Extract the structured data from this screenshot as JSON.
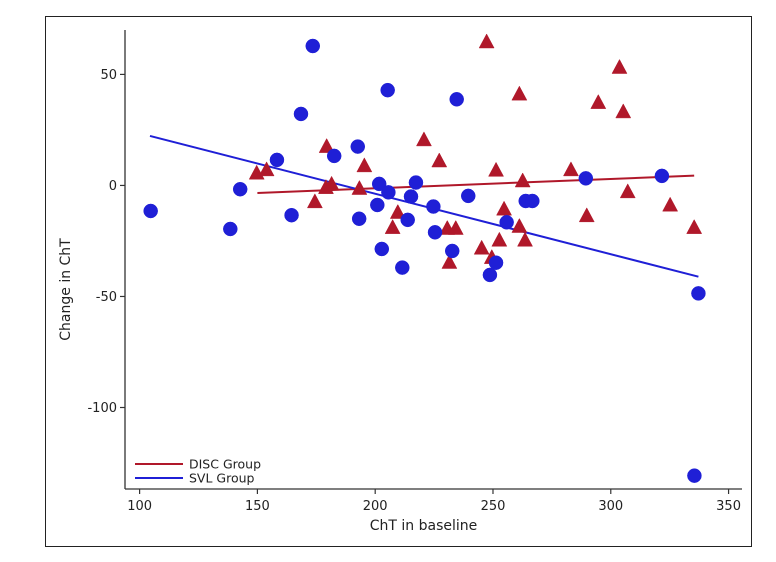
{
  "chart_data": {
    "type": "scatter",
    "title": "",
    "xlabel": "ChT in baseline",
    "ylabel": "Change in ChT",
    "xlim": [
      93.8,
      355.7
    ],
    "ylim": [
      -136.7,
      70
    ],
    "xticks": [
      100,
      150,
      200,
      250,
      300,
      350
    ],
    "yticks": [
      50,
      0,
      -50,
      -100
    ],
    "xtick_labels": [
      "100",
      "150",
      "200",
      "250",
      "300",
      "350"
    ],
    "ytick_labels": [
      "50",
      "0",
      "-50",
      "-100"
    ],
    "grid": false,
    "legend_position": "bottom-left",
    "series": [
      {
        "name": "DISC Group",
        "marker": "triangle",
        "color": "#b0182a",
        "points": [
          [
            149.7,
            5.2
          ],
          [
            153.9,
            6.7
          ],
          [
            174.4,
            -7.7
          ],
          [
            179.4,
            17.2
          ],
          [
            179.1,
            -1.3
          ],
          [
            181.5,
            0.2
          ],
          [
            193.3,
            -1.7
          ],
          [
            195.4,
            8.5
          ],
          [
            207.4,
            -19.3
          ],
          [
            209.6,
            -12.5
          ],
          [
            220.7,
            20.2
          ],
          [
            227.2,
            10.7
          ],
          [
            230.6,
            -19.7
          ],
          [
            234.2,
            -19.7
          ],
          [
            231.5,
            -35
          ],
          [
            245.2,
            -28.6
          ],
          [
            247.3,
            64.3
          ],
          [
            249.5,
            -32.8
          ],
          [
            251.3,
            6.5
          ],
          [
            252.7,
            -25
          ],
          [
            254.7,
            -11
          ],
          [
            261.2,
            40.8
          ],
          [
            261.2,
            -18.8
          ],
          [
            262.6,
            1.7
          ],
          [
            263.6,
            -25
          ],
          [
            283.1,
            6.7
          ],
          [
            289.8,
            -14
          ],
          [
            294.7,
            37
          ],
          [
            303.7,
            52.8
          ],
          [
            305.3,
            32.8
          ],
          [
            307.2,
            -3.2
          ],
          [
            325.2,
            -9.2
          ],
          [
            335.4,
            -19.3
          ]
        ],
        "fit_line": [
          [
            150,
            -3.4
          ],
          [
            335.4,
            4.4
          ]
        ],
        "line_color": "#b0182a"
      },
      {
        "name": "SVL Group",
        "marker": "circle",
        "color": "#1f1fd6",
        "points": [
          [
            104.7,
            -11.5
          ],
          [
            138.5,
            -19.6
          ],
          [
            142.7,
            -1.7
          ],
          [
            158.3,
            11.5
          ],
          [
            164.5,
            -13.4
          ],
          [
            168.5,
            32.2
          ],
          [
            173.5,
            62.8
          ],
          [
            182.6,
            13.3
          ],
          [
            192.6,
            17.5
          ],
          [
            193.2,
            -15
          ],
          [
            200.9,
            -8.8
          ],
          [
            201.7,
            0.7
          ],
          [
            202.8,
            -28.6
          ],
          [
            205.3,
            42.9
          ],
          [
            205.6,
            -3.1
          ],
          [
            211.5,
            -37
          ],
          [
            213.8,
            -15.5
          ],
          [
            215.2,
            -5
          ],
          [
            217.3,
            1.3
          ],
          [
            224.7,
            -9.5
          ],
          [
            225.4,
            -21.1
          ],
          [
            232.7,
            -29.5
          ],
          [
            234.6,
            38.8
          ],
          [
            239.5,
            -4.7
          ],
          [
            248.7,
            -40.3
          ],
          [
            251.3,
            -34.8
          ],
          [
            255.8,
            -16.6
          ],
          [
            263.9,
            -7
          ],
          [
            266.7,
            -7
          ],
          [
            289.4,
            3.2
          ],
          [
            321.7,
            4.3
          ],
          [
            337.2,
            -48.6
          ],
          [
            335.5,
            -130.7
          ]
        ],
        "fit_line": [
          [
            104.4,
            22.3
          ],
          [
            337.2,
            -41.1
          ]
        ],
        "line_color": "#1f1fd6"
      }
    ],
    "legend": [
      {
        "label": "DISC Group",
        "color": "#b0182a"
      },
      {
        "label": "SVL Group",
        "color": "#1f1fd6"
      }
    ]
  }
}
